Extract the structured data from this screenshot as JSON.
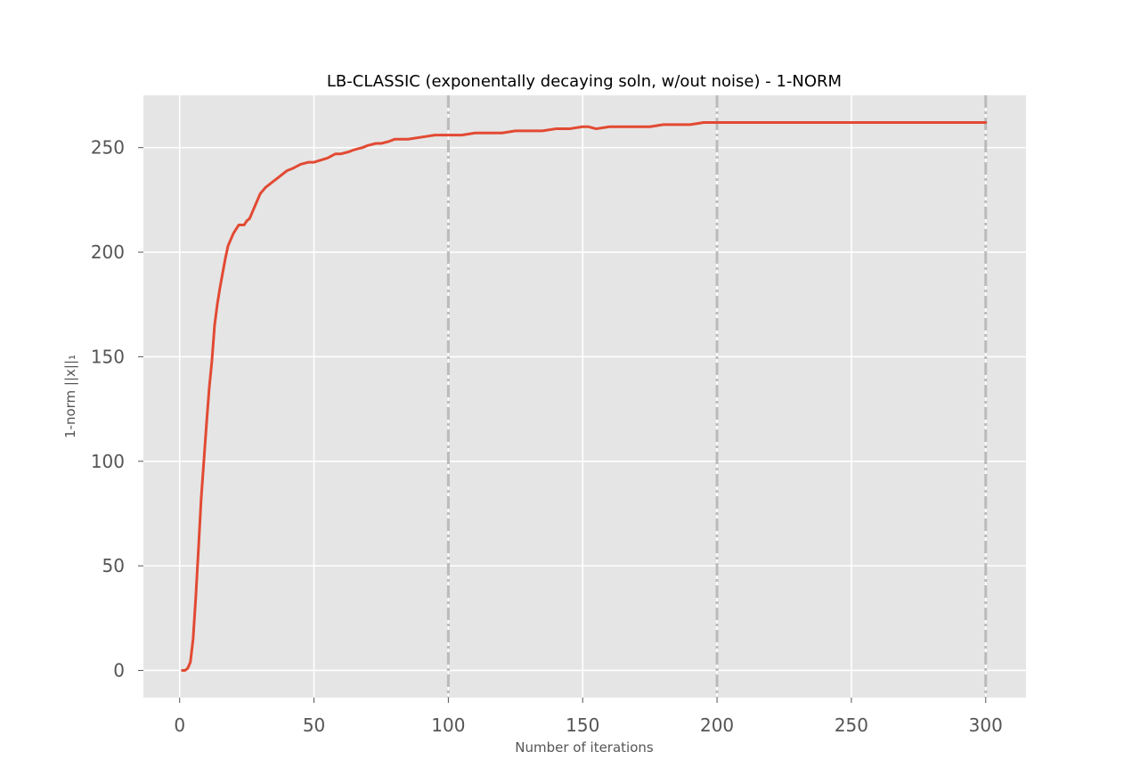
{
  "chart_data": {
    "type": "line",
    "title": "LB-CLASSIC (exponentally decaying soln, w/out noise) - 1-NORM",
    "xlabel": "Number of iterations",
    "ylabel": "1-norm ||x||₁",
    "xlim": [
      -13.5,
      315
    ],
    "ylim": [
      -13,
      275
    ],
    "xticks": [
      0,
      50,
      100,
      150,
      200,
      250,
      300
    ],
    "yticks": [
      0,
      50,
      100,
      150,
      200,
      250
    ],
    "xtick_labels": [
      "0",
      "50",
      "100",
      "150",
      "200",
      "250",
      "300"
    ],
    "ytick_labels": [
      "0",
      "50",
      "100",
      "150",
      "200",
      "250"
    ],
    "grid": true,
    "vlines": [
      100,
      200,
      300
    ],
    "colors": {
      "series": "#E24A33",
      "axes_bg": "#E5E5E5",
      "grid": "#FFFFFF",
      "vlines": "#BBBBBB"
    },
    "series": [
      {
        "x": [
          1,
          2,
          3,
          4,
          5,
          6,
          7,
          8,
          9,
          10,
          11,
          12,
          13,
          14,
          15,
          16,
          17,
          18,
          20,
          22,
          24,
          25,
          26,
          27,
          28,
          30,
          32,
          33,
          35,
          36,
          37,
          38,
          39,
          40,
          42,
          45,
          48,
          50,
          55,
          58,
          60,
          63,
          65,
          68,
          70,
          73,
          75,
          78,
          80,
          85,
          90,
          95,
          100,
          105,
          110,
          115,
          120,
          125,
          130,
          135,
          140,
          145,
          150,
          152,
          155,
          160,
          165,
          170,
          175,
          180,
          185,
          190,
          195,
          200,
          210,
          220,
          230,
          240,
          250,
          260,
          270,
          280,
          290,
          300
        ],
        "y": [
          0,
          0,
          1,
          4,
          15,
          35,
          58,
          82,
          100,
          118,
          135,
          148,
          165,
          175,
          183,
          190,
          197,
          203,
          209,
          213,
          213,
          215,
          216,
          219,
          222,
          228,
          231,
          232,
          234,
          235,
          236,
          237,
          238,
          239,
          240,
          242,
          243,
          243,
          245,
          247,
          247,
          248,
          249,
          250,
          251,
          252,
          252,
          253,
          254,
          254,
          255,
          256,
          256,
          256,
          257,
          257,
          257,
          258,
          258,
          258,
          259,
          259,
          260,
          260,
          259,
          260,
          260,
          260,
          260,
          261,
          261,
          261,
          262,
          262,
          262,
          262,
          262,
          262,
          262,
          262,
          262,
          262,
          262,
          262
        ]
      }
    ]
  }
}
